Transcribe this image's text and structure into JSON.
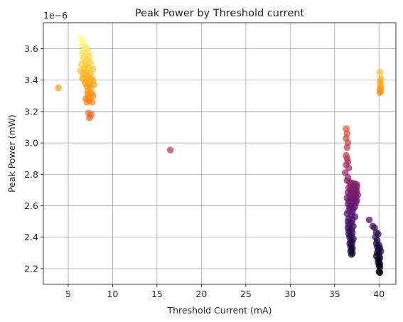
{
  "chart_data": {
    "type": "scatter",
    "title": "Peak Power by Threshold current",
    "xlabel": "Threshold Current (mA)",
    "ylabel": "Peak Power (mW)",
    "offset_label": "1e−6",
    "xlim": [
      2.2,
      41.9
    ],
    "ylim": [
      2.1e-06,
      3.765e-06
    ],
    "grid": true,
    "colormap": "inferno",
    "x_ticks": [
      5,
      10,
      15,
      20,
      25,
      30,
      35,
      40
    ],
    "x_tick_labels": [
      "5",
      "10",
      "15",
      "20",
      "25",
      "30",
      "35",
      "40"
    ],
    "y_ticks": [
      2.2e-06,
      2.4e-06,
      2.6e-06,
      2.8e-06,
      3e-06,
      3.2e-06,
      3.4e-06,
      3.6e-06
    ],
    "y_tick_labels": [
      "2.2",
      "2.4",
      "2.6",
      "2.8",
      "3.0",
      "3.2",
      "3.4",
      "3.6"
    ],
    "points": [
      [
        3.9,
        3.35e-06
      ],
      [
        6.3,
        3.67e-06
      ],
      [
        6.5,
        3.66e-06
      ],
      [
        6.7,
        3.64e-06
      ],
      [
        6.6,
        3.62e-06
      ],
      [
        6.9,
        3.61e-06
      ],
      [
        7.1,
        3.6e-06
      ],
      [
        6.8,
        3.59e-06
      ],
      [
        7.3,
        3.58e-06
      ],
      [
        6.6,
        3.57e-06
      ],
      [
        7.0,
        3.56e-06
      ],
      [
        7.4,
        3.55e-06
      ],
      [
        6.7,
        3.54e-06
      ],
      [
        7.2,
        3.53e-06
      ],
      [
        6.9,
        3.52e-06
      ],
      [
        7.5,
        3.51e-06
      ],
      [
        6.5,
        3.5e-06
      ],
      [
        7.0,
        3.49e-06
      ],
      [
        7.3,
        3.48e-06
      ],
      [
        6.8,
        3.47e-06
      ],
      [
        7.8,
        3.47e-06
      ],
      [
        6.4,
        3.46e-06
      ],
      [
        7.1,
        3.45e-06
      ],
      [
        7.5,
        3.44e-06
      ],
      [
        6.7,
        3.44e-06
      ],
      [
        6.9,
        3.43e-06
      ],
      [
        7.2,
        3.42e-06
      ],
      [
        7.6,
        3.41e-06
      ],
      [
        6.6,
        3.41e-06
      ],
      [
        7.0,
        3.4e-06
      ],
      [
        7.4,
        3.39e-06
      ],
      [
        7.8,
        3.4e-06
      ],
      [
        6.9,
        3.38e-06
      ],
      [
        7.3,
        3.37e-06
      ],
      [
        7.9,
        3.37e-06
      ],
      [
        7.1,
        3.36e-06
      ],
      [
        7.5,
        3.35e-06
      ],
      [
        7.2,
        3.33e-06
      ],
      [
        7.6,
        3.32e-06
      ],
      [
        7.2,
        3.31e-06
      ],
      [
        7.8,
        3.3e-06
      ],
      [
        7.3,
        3.29e-06
      ],
      [
        7.0,
        3.28e-06
      ],
      [
        7.4,
        3.27e-06
      ],
      [
        7.1,
        3.26e-06
      ],
      [
        7.7,
        3.26e-06
      ],
      [
        7.3,
        3.19e-06
      ],
      [
        7.6,
        3.18e-06
      ],
      [
        7.4,
        3.16e-06
      ],
      [
        16.5,
        2.955e-06
      ],
      [
        36.3,
        3.09e-06
      ],
      [
        36.4,
        3.06e-06
      ],
      [
        36.3,
        3.03e-06
      ],
      [
        36.5,
        3e-06
      ],
      [
        36.4,
        2.97e-06
      ],
      [
        36.3,
        2.92e-06
      ],
      [
        36.4,
        2.9e-06
      ],
      [
        36.5,
        2.88e-06
      ],
      [
        36.3,
        2.86e-06
      ],
      [
        36.6,
        2.84e-06
      ],
      [
        36.2,
        2.81e-06
      ],
      [
        36.5,
        2.78e-06
      ],
      [
        36.4,
        2.76e-06
      ],
      [
        36.7,
        2.75e-06
      ],
      [
        37.0,
        2.745e-06
      ],
      [
        37.3,
        2.74e-06
      ],
      [
        37.5,
        2.735e-06
      ],
      [
        36.8,
        2.73e-06
      ],
      [
        37.2,
        2.725e-06
      ],
      [
        37.5,
        2.72e-06
      ],
      [
        36.6,
        2.715e-06
      ],
      [
        37.0,
        2.71e-06
      ],
      [
        37.4,
        2.705e-06
      ],
      [
        36.8,
        2.7e-06
      ],
      [
        37.2,
        2.695e-06
      ],
      [
        37.5,
        2.69e-06
      ],
      [
        36.5,
        2.685e-06
      ],
      [
        36.9,
        2.68e-06
      ],
      [
        37.3,
        2.675e-06
      ],
      [
        37.6,
        2.67e-06
      ],
      [
        36.7,
        2.665e-06
      ],
      [
        37.1,
        2.66e-06
      ],
      [
        37.4,
        2.655e-06
      ],
      [
        36.4,
        2.65e-06
      ],
      [
        36.8,
        2.645e-06
      ],
      [
        37.2,
        2.64e-06
      ],
      [
        37.5,
        2.635e-06
      ],
      [
        36.6,
        2.63e-06
      ],
      [
        37.0,
        2.625e-06
      ],
      [
        37.4,
        2.62e-06
      ],
      [
        36.5,
        2.61e-06
      ],
      [
        36.9,
        2.6e-06
      ],
      [
        37.3,
        2.595e-06
      ],
      [
        36.7,
        2.59e-06
      ],
      [
        37.1,
        2.58e-06
      ],
      [
        36.6,
        2.57e-06
      ],
      [
        37.0,
        2.56e-06
      ],
      [
        36.4,
        2.55e-06
      ],
      [
        36.9,
        2.54e-06
      ],
      [
        37.3,
        2.53e-06
      ],
      [
        36.6,
        2.52e-06
      ],
      [
        37.0,
        2.51e-06
      ],
      [
        36.5,
        2.5e-06
      ],
      [
        36.9,
        2.49e-06
      ],
      [
        36.6,
        2.48e-06
      ],
      [
        37.1,
        2.47e-06
      ],
      [
        36.5,
        2.46e-06
      ],
      [
        36.9,
        2.45e-06
      ],
      [
        36.6,
        2.44e-06
      ],
      [
        37.0,
        2.43e-06
      ],
      [
        36.6,
        2.42e-06
      ],
      [
        36.9,
        2.41e-06
      ],
      [
        36.7,
        2.4e-06
      ],
      [
        37.1,
        2.39e-06
      ],
      [
        36.8,
        2.38e-06
      ],
      [
        37.0,
        2.37e-06
      ],
      [
        36.7,
        2.36e-06
      ],
      [
        36.9,
        2.35e-06
      ],
      [
        36.8,
        2.34e-06
      ],
      [
        37.0,
        2.33e-06
      ],
      [
        36.9,
        2.32e-06
      ],
      [
        36.8,
        2.31e-06
      ],
      [
        37.0,
        2.3e-06
      ],
      [
        36.9,
        2.29e-06
      ],
      [
        38.9,
        2.51e-06
      ],
      [
        39.3,
        2.47e-06
      ],
      [
        39.5,
        2.46e-06
      ],
      [
        39.7,
        2.43e-06
      ],
      [
        39.9,
        2.42e-06
      ],
      [
        39.6,
        2.4e-06
      ],
      [
        39.8,
        2.38e-06
      ],
      [
        39.7,
        2.36e-06
      ],
      [
        40.0,
        2.35e-06
      ],
      [
        39.8,
        2.34e-06
      ],
      [
        40.1,
        2.33e-06
      ],
      [
        39.9,
        2.32e-06
      ],
      [
        40.2,
        2.31e-06
      ],
      [
        39.8,
        2.3e-06
      ],
      [
        40.0,
        2.29e-06
      ],
      [
        39.7,
        2.28e-06
      ],
      [
        40.1,
        2.27e-06
      ],
      [
        39.9,
        2.26e-06
      ],
      [
        40.0,
        2.25e-06
      ],
      [
        39.9,
        2.24e-06
      ],
      [
        40.1,
        2.23e-06
      ],
      [
        40.0,
        2.22e-06
      ],
      [
        40.1,
        2.21e-06
      ],
      [
        40.0,
        2.18e-06
      ],
      [
        40.1,
        2.175e-06
      ],
      [
        40.1,
        3.45e-06
      ],
      [
        40.2,
        3.41e-06
      ],
      [
        40.1,
        3.39e-06
      ],
      [
        40.2,
        3.37e-06
      ],
      [
        40.2,
        3.35e-06
      ],
      [
        40.1,
        3.34e-06
      ],
      [
        40.2,
        3.33e-06
      ],
      [
        40.1,
        3.32e-06
      ]
    ]
  }
}
